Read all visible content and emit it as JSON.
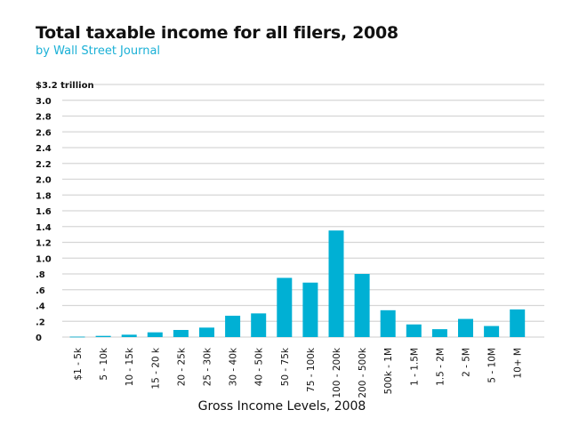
{
  "chart_data": {
    "type": "bar",
    "title": "Total taxable income for all filers, 2008",
    "subtitle": "by Wall Street Journal",
    "xlabel": "Gross Income Levels, 2008",
    "ylabel": "",
    "ylim": [
      0,
      3.2
    ],
    "yticks": [
      {
        "value": 0,
        "label": "0"
      },
      {
        "value": 0.2,
        "label": ".2"
      },
      {
        "value": 0.4,
        "label": ".4"
      },
      {
        "value": 0.6,
        "label": ".6"
      },
      {
        "value": 0.8,
        "label": ".8"
      },
      {
        "value": 1.0,
        "label": "1.0"
      },
      {
        "value": 1.2,
        "label": "1.2"
      },
      {
        "value": 1.4,
        "label": "1.4"
      },
      {
        "value": 1.6,
        "label": "1.6"
      },
      {
        "value": 1.8,
        "label": "1.8"
      },
      {
        "value": 2.0,
        "label": "2.0"
      },
      {
        "value": 2.2,
        "label": "2.2"
      },
      {
        "value": 2.4,
        "label": "2.4"
      },
      {
        "value": 2.6,
        "label": "2.6"
      },
      {
        "value": 2.8,
        "label": "2.8"
      },
      {
        "value": 3.0,
        "label": "3.0"
      },
      {
        "value": 3.2,
        "label": "$3.2 trillion"
      }
    ],
    "grid": true,
    "bar_color": "#00b0d4",
    "categories": [
      "$1 - 5k",
      "5 - 10k",
      "10 - 15k",
      "15 - 20 k",
      "20 - 25k",
      "25 - 30k",
      "30 - 40k",
      "40 - 50k",
      "50 - 75k",
      "75 - 100k",
      "100 - 200k",
      "200 - 500k",
      "500k - 1M",
      "1 - 1.5M",
      "1.5 - 2M",
      "2 - 5M",
      "5 - 10M",
      "10+ M"
    ],
    "values": [
      0.005,
      0.015,
      0.03,
      0.06,
      0.09,
      0.12,
      0.27,
      0.3,
      0.75,
      0.69,
      1.35,
      0.8,
      0.34,
      0.16,
      0.1,
      0.23,
      0.14,
      0.35
    ]
  }
}
